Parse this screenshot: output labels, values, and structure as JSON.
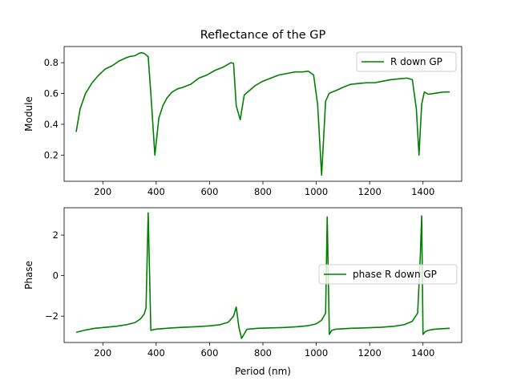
{
  "figure": {
    "title": "Reflectance of the GP"
  },
  "chart_data": [
    {
      "type": "line",
      "ylabel": "Module",
      "xlabel": "",
      "xlim": [
        55,
        1545
      ],
      "ylim": [
        0.03,
        0.905
      ],
      "xticks": [
        200,
        400,
        600,
        800,
        1000,
        1200,
        1400
      ],
      "yticks": [
        0.2,
        0.4,
        0.6,
        0.8
      ],
      "ytick_labels": [
        "0.2",
        "0.4",
        "0.6",
        "0.8"
      ],
      "legend_position": "top-right",
      "grid": false,
      "series": [
        {
          "name": "R down GP",
          "color": "#008000",
          "x": [
            100,
            115,
            135,
            160,
            185,
            210,
            235,
            260,
            285,
            300,
            320,
            335,
            345,
            355,
            370,
            380,
            395,
            410,
            425,
            440,
            460,
            480,
            500,
            530,
            560,
            590,
            620,
            650,
            670,
            680,
            690,
            700,
            715,
            730,
            750,
            770,
            800,
            830,
            860,
            890,
            920,
            950,
            970,
            990,
            1005,
            1020,
            1035,
            1048,
            1060,
            1075,
            1100,
            1130,
            1160,
            1190,
            1220,
            1250,
            1280,
            1310,
            1340,
            1360,
            1375,
            1385,
            1395,
            1405,
            1420,
            1440,
            1460,
            1480,
            1500
          ],
          "y": [
            0.35,
            0.5,
            0.6,
            0.67,
            0.72,
            0.76,
            0.78,
            0.81,
            0.83,
            0.84,
            0.845,
            0.86,
            0.865,
            0.86,
            0.84,
            0.6,
            0.2,
            0.44,
            0.52,
            0.57,
            0.61,
            0.63,
            0.64,
            0.66,
            0.7,
            0.72,
            0.75,
            0.77,
            0.79,
            0.8,
            0.795,
            0.52,
            0.43,
            0.59,
            0.62,
            0.65,
            0.68,
            0.7,
            0.72,
            0.73,
            0.74,
            0.74,
            0.745,
            0.72,
            0.53,
            0.07,
            0.55,
            0.6,
            0.61,
            0.62,
            0.64,
            0.66,
            0.665,
            0.67,
            0.67,
            0.68,
            0.69,
            0.695,
            0.7,
            0.69,
            0.5,
            0.2,
            0.53,
            0.61,
            0.595,
            0.6,
            0.605,
            0.61,
            0.61
          ]
        }
      ]
    },
    {
      "type": "line",
      "ylabel": "Phase",
      "xlabel": "Period (nm)",
      "xlim": [
        55,
        1545
      ],
      "ylim": [
        -3.3,
        3.35
      ],
      "xticks": [
        200,
        400,
        600,
        800,
        1000,
        1200,
        1400
      ],
      "yticks": [
        -2,
        0,
        2
      ],
      "ytick_labels": [
        "−2",
        "0",
        "2"
      ],
      "legend_position": "center-right",
      "grid": false,
      "series": [
        {
          "name": "phase R down GP",
          "color": "#008000",
          "x": [
            100,
            130,
            170,
            210,
            250,
            290,
            320,
            340,
            355,
            362,
            370,
            380,
            395,
            420,
            460,
            500,
            550,
            600,
            640,
            670,
            690,
            700,
            710,
            720,
            740,
            780,
            830,
            880,
            930,
            970,
            1000,
            1020,
            1035,
            1041,
            1049,
            1058,
            1070,
            1090,
            1130,
            1180,
            1240,
            1290,
            1330,
            1360,
            1380,
            1390,
            1395,
            1400,
            1410,
            1420,
            1440,
            1470,
            1500
          ],
          "y": [
            -2.8,
            -2.7,
            -2.6,
            -2.55,
            -2.5,
            -2.42,
            -2.32,
            -2.15,
            -1.9,
            -1.6,
            3.1,
            -2.7,
            -2.65,
            -2.62,
            -2.58,
            -2.55,
            -2.52,
            -2.48,
            -2.42,
            -2.3,
            -2.0,
            -1.55,
            -2.55,
            -3.1,
            -2.65,
            -2.6,
            -2.58,
            -2.56,
            -2.52,
            -2.47,
            -2.38,
            -2.2,
            -1.85,
            2.9,
            -2.9,
            -2.7,
            -2.65,
            -2.63,
            -2.6,
            -2.58,
            -2.55,
            -2.5,
            -2.42,
            -2.25,
            -1.85,
            1.0,
            2.95,
            -2.9,
            -2.75,
            -2.7,
            -2.65,
            -2.62,
            -2.6
          ]
        }
      ]
    }
  ]
}
